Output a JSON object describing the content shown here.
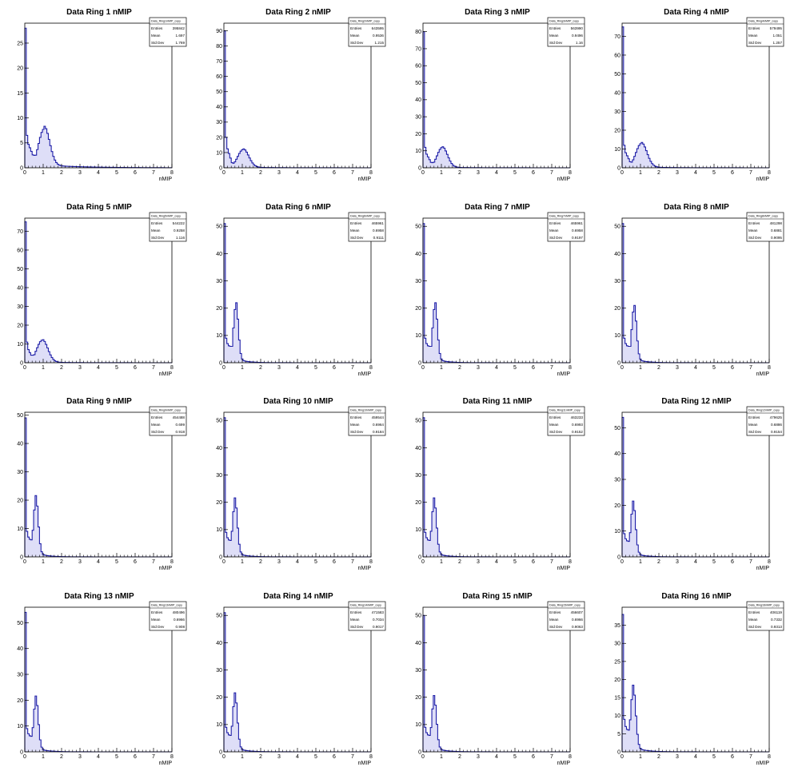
{
  "colors": {
    "line": "#1f1fa8",
    "fill": "#4a4ad0",
    "frame": "#000000",
    "background": "#ffffff"
  },
  "chart_data": [
    {
      "type": "bar",
      "title": "Data Ring 1 nMIP",
      "xlabel": "nMIP",
      "xlim": [
        0,
        8
      ],
      "ylim": [
        0,
        29
      ],
      "yticks": [
        0,
        5,
        10,
        15,
        20,
        25
      ],
      "stats": {
        "name": "Data_Ring1nMIP_copy",
        "entries": "395842",
        "mean": "1.697",
        "std_dev": "1.769"
      },
      "peak0": 28,
      "dip_x": 0.45,
      "dip_y": 2.5,
      "peak_x": 1.05,
      "peak_y": 7.8,
      "peak_w": 0.3,
      "tail": 3.2,
      "tail_decay": 2.0,
      "spike_y": 6.5
    },
    {
      "type": "bar",
      "title": "Data Ring 2 nMIP",
      "xlabel": "nMIP",
      "xlim": [
        0,
        8
      ],
      "ylim": [
        0,
        95
      ],
      "yticks": [
        0,
        10,
        20,
        30,
        40,
        50,
        60,
        70,
        80,
        90
      ],
      "stats": {
        "name": "Data_Ring2nMIP_copy",
        "entries": "643595",
        "mean": "0.9536",
        "std_dev": "1.215"
      },
      "peak0": 90,
      "dip_x": 0.45,
      "dip_y": 3,
      "peak_x": 1.05,
      "peak_y": 12,
      "peak_w": 0.3,
      "tail": 3,
      "tail_decay": 1.2,
      "spike_y": 20
    },
    {
      "type": "bar",
      "title": "Data Ring 3 nMIP",
      "xlabel": "nMIP",
      "xlim": [
        0,
        8
      ],
      "ylim": [
        0,
        85
      ],
      "yticks": [
        0,
        10,
        20,
        30,
        40,
        50,
        60,
        70,
        80
      ],
      "stats": {
        "name": "Data_Ring3nMIP_copy",
        "entries": "563990",
        "mean": "0.9496",
        "std_dev": "1.16"
      },
      "peak0": 80,
      "dip_x": 0.45,
      "dip_y": 3,
      "peak_x": 1.05,
      "peak_y": 12,
      "peak_w": 0.28,
      "tail": 2.5,
      "tail_decay": 1.1,
      "spike_y": 12
    },
    {
      "type": "bar",
      "title": "Data Ring 4 nMIP",
      "xlabel": "nMIP",
      "xlim": [
        0,
        8
      ],
      "ylim": [
        0,
        77
      ],
      "yticks": [
        0,
        10,
        20,
        30,
        40,
        50,
        60,
        70
      ],
      "stats": {
        "name": "Data_Ring4nMIP_copy",
        "entries": "579495",
        "mean": "1.051",
        "std_dev": "1.257"
      },
      "peak0": 75,
      "dip_x": 0.45,
      "dip_y": 3,
      "peak_x": 1.05,
      "peak_y": 13,
      "peak_w": 0.3,
      "tail": 3,
      "tail_decay": 1.2,
      "spike_y": 12
    },
    {
      "type": "bar",
      "title": "Data Ring 5 nMIP",
      "xlabel": "nMIP",
      "xlim": [
        0,
        8
      ],
      "ylim": [
        0,
        77
      ],
      "yticks": [
        0,
        10,
        20,
        30,
        40,
        50,
        60,
        70
      ],
      "stats": {
        "name": "Data_Ring5nMIP_copy",
        "entries": "544222",
        "mean": "0.9258",
        "std_dev": "1.116"
      },
      "peak0": 75,
      "dip_x": 0.35,
      "dip_y": 4,
      "peak_x": 0.95,
      "peak_y": 12,
      "peak_w": 0.3,
      "tail": 2.5,
      "tail_decay": 1.1,
      "spike_y": 11
    },
    {
      "type": "bar",
      "title": "Data Ring 6 nMIP",
      "xlabel": "nMIP",
      "xlim": [
        0,
        8
      ],
      "ylim": [
        0,
        53
      ],
      "yticks": [
        0,
        10,
        20,
        30,
        40,
        50
      ],
      "stats": {
        "name": "Data_Ring6nMIP_copy",
        "entries": "465961",
        "mean": "0.6958",
        "std_dev": "0.9111"
      },
      "peak0": 51,
      "dip_x": 0.3,
      "dip_y": 6,
      "peak_x": 0.65,
      "peak_y": 21,
      "peak_w": 0.13,
      "tail": 9,
      "tail_decay": 0.5,
      "spike_y": 9
    },
    {
      "type": "bar",
      "title": "Data Ring 7 nMIP",
      "xlabel": "nMIP",
      "xlim": [
        0,
        8
      ],
      "ylim": [
        0,
        53
      ],
      "yticks": [
        0,
        10,
        20,
        30,
        40,
        50
      ],
      "stats": {
        "name": "Data_Ring7nMIP_copy",
        "entries": "465961",
        "mean": "0.6958",
        "std_dev": "0.9197"
      },
      "peak0": 51,
      "dip_x": 0.3,
      "dip_y": 6,
      "peak_x": 0.65,
      "peak_y": 21,
      "peak_w": 0.13,
      "tail": 9,
      "tail_decay": 0.5,
      "spike_y": 9
    },
    {
      "type": "bar",
      "title": "Data Ring 8 nMIP",
      "xlabel": "nMIP",
      "xlim": [
        0,
        8
      ],
      "ylim": [
        0,
        53
      ],
      "yticks": [
        0,
        10,
        20,
        30,
        40,
        50
      ],
      "stats": {
        "name": "Data_Ring8nMIP_copy",
        "entries": "481298",
        "mean": "0.6881",
        "std_dev": "0.9095"
      },
      "peak0": 51,
      "dip_x": 0.3,
      "dip_y": 6,
      "peak_x": 0.65,
      "peak_y": 20,
      "peak_w": 0.13,
      "tail": 9,
      "tail_decay": 0.5,
      "spike_y": 9
    },
    {
      "type": "bar",
      "title": "Data Ring 9 nMIP",
      "xlabel": "nMIP",
      "xlim": [
        0,
        8
      ],
      "ylim": [
        0,
        51
      ],
      "yticks": [
        0,
        10,
        20,
        30,
        40,
        50
      ],
      "stats": {
        "name": "Data_Ring9nMIP_copy",
        "entries": "454488",
        "mean": "0.699",
        "std_dev": "0.918"
      },
      "peak0": 49,
      "dip_x": 0.3,
      "dip_y": 6,
      "peak_x": 0.6,
      "peak_y": 20,
      "peak_w": 0.13,
      "tail": 9,
      "tail_decay": 0.5,
      "spike_y": 9
    },
    {
      "type": "bar",
      "title": "Data Ring 10 nMIP",
      "xlabel": "nMIP",
      "xlim": [
        0,
        8
      ],
      "ylim": [
        0,
        53
      ],
      "yticks": [
        0,
        10,
        20,
        30,
        40,
        50
      ],
      "stats": {
        "name": "Data_Ring10nMIP_copy",
        "entries": "459544",
        "mean": "0.6964",
        "std_dev": "0.9184"
      },
      "peak0": 51,
      "dip_x": 0.3,
      "dip_y": 6,
      "peak_x": 0.6,
      "peak_y": 20,
      "peak_w": 0.13,
      "tail": 9,
      "tail_decay": 0.5,
      "spike_y": 9
    },
    {
      "type": "bar",
      "title": "Data Ring 11 nMIP",
      "xlabel": "nMIP",
      "xlim": [
        0,
        8
      ],
      "ylim": [
        0,
        53
      ],
      "yticks": [
        0,
        10,
        20,
        30,
        40,
        50
      ],
      "stats": {
        "name": "Data_Ring11nMIP_copy",
        "entries": "463233",
        "mean": "0.6993",
        "std_dev": "0.9152"
      },
      "peak0": 51,
      "dip_x": 0.3,
      "dip_y": 6,
      "peak_x": 0.6,
      "peak_y": 20,
      "peak_w": 0.13,
      "tail": 9,
      "tail_decay": 0.5,
      "spike_y": 9
    },
    {
      "type": "bar",
      "title": "Data Ring 12 nMIP",
      "xlabel": "nMIP",
      "xlim": [
        0,
        8
      ],
      "ylim": [
        0,
        56
      ],
      "yticks": [
        0,
        10,
        20,
        30,
        40,
        50
      ],
      "stats": {
        "name": "Data_Ring12nMIP_copy",
        "entries": "479625",
        "mean": "0.6886",
        "std_dev": "0.9154"
      },
      "peak0": 54,
      "dip_x": 0.3,
      "dip_y": 6,
      "peak_x": 0.6,
      "peak_y": 20,
      "peak_w": 0.13,
      "tail": 9,
      "tail_decay": 0.5,
      "spike_y": 9
    },
    {
      "type": "bar",
      "title": "Data Ring 13 nMIP",
      "xlabel": "nMIP",
      "xlim": [
        0,
        8
      ],
      "ylim": [
        0,
        56
      ],
      "yticks": [
        0,
        10,
        20,
        30,
        40,
        50
      ],
      "stats": {
        "name": "Data_Ring13nMIP_copy",
        "entries": "480496",
        "mean": "0.6966",
        "std_dev": "0.908"
      },
      "peak0": 54,
      "dip_x": 0.3,
      "dip_y": 6,
      "peak_x": 0.6,
      "peak_y": 20,
      "peak_w": 0.13,
      "tail": 9,
      "tail_decay": 0.5,
      "spike_y": 9
    },
    {
      "type": "bar",
      "title": "Data Ring 14 nMIP",
      "xlabel": "nMIP",
      "xlim": [
        0,
        8
      ],
      "ylim": [
        0,
        53
      ],
      "yticks": [
        0,
        10,
        20,
        30,
        40,
        50
      ],
      "stats": {
        "name": "Data_Ring14nMIP_copy",
        "entries": "471583",
        "mean": "0.7034",
        "std_dev": "0.9017"
      },
      "peak0": 51,
      "dip_x": 0.3,
      "dip_y": 6,
      "peak_x": 0.6,
      "peak_y": 20,
      "peak_w": 0.13,
      "tail": 9,
      "tail_decay": 0.5,
      "spike_y": 9
    },
    {
      "type": "bar",
      "title": "Data Ring 15 nMIP",
      "xlabel": "nMIP",
      "xlim": [
        0,
        8
      ],
      "ylim": [
        0,
        53
      ],
      "yticks": [
        0,
        10,
        20,
        30,
        40,
        50
      ],
      "stats": {
        "name": "Data_Ring15nMIP_copy",
        "entries": "456607",
        "mean": "0.6966",
        "std_dev": "0.9063"
      },
      "peak0": 50,
      "dip_x": 0.3,
      "dip_y": 6,
      "peak_x": 0.6,
      "peak_y": 19,
      "peak_w": 0.13,
      "tail": 9,
      "tail_decay": 0.5,
      "spike_y": 9
    },
    {
      "type": "bar",
      "title": "Data Ring 16 nMIP",
      "xlabel": "nMIP",
      "xlim": [
        0,
        8
      ],
      "ylim": [
        0,
        40
      ],
      "yticks": [
        0,
        5,
        10,
        15,
        20,
        25,
        30,
        35
      ],
      "stats": {
        "name": "Data_Ring16nMIP_copy",
        "entries": "406119",
        "mean": "0.7332",
        "std_dev": "0.9313"
      },
      "peak0": 38,
      "dip_x": 0.3,
      "dip_y": 6,
      "peak_x": 0.6,
      "peak_y": 17,
      "peak_w": 0.14,
      "tail": 8,
      "tail_decay": 0.55,
      "spike_y": 9
    }
  ]
}
